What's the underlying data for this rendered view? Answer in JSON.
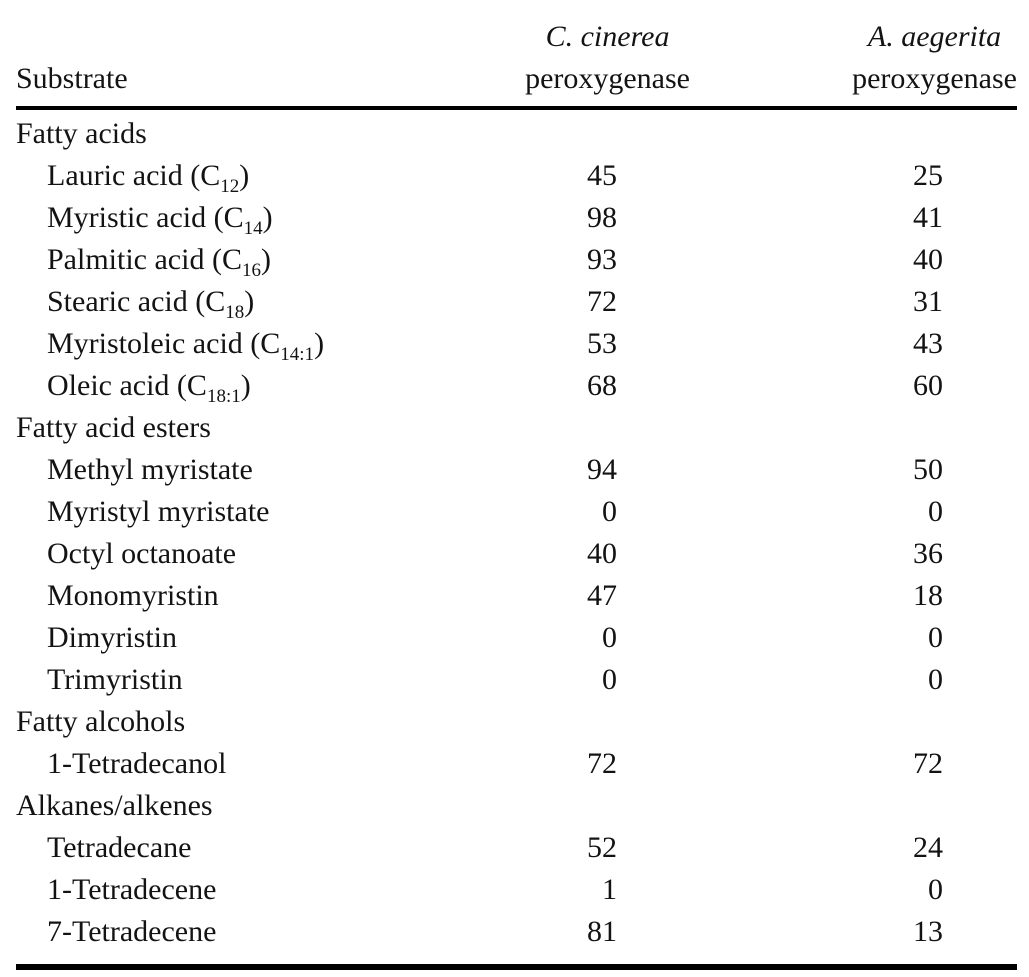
{
  "colors": {
    "background": "#ffffff",
    "text": "#131313",
    "rule": "#000000"
  },
  "table": {
    "header": {
      "substrate": "Substrate",
      "col2": {
        "species": "C. cinerea",
        "line2": "peroxygenase"
      },
      "col3": {
        "species": "A. aegerita",
        "line2": "peroxygenase"
      }
    },
    "rows": [
      {
        "type": "section",
        "label": [
          {
            "t": "Fatty acids"
          }
        ],
        "values": [
          "",
          ""
        ]
      },
      {
        "type": "item",
        "label": [
          {
            "t": "Lauric acid (C"
          },
          {
            "s": "12"
          },
          {
            "t": ")"
          }
        ],
        "values": [
          "45",
          "25"
        ]
      },
      {
        "type": "item",
        "label": [
          {
            "t": "Myristic acid (C"
          },
          {
            "s": "14"
          },
          {
            "t": ")"
          }
        ],
        "values": [
          "98",
          "41"
        ]
      },
      {
        "type": "item",
        "label": [
          {
            "t": "Palmitic acid (C"
          },
          {
            "s": "16"
          },
          {
            "t": ")"
          }
        ],
        "values": [
          "93",
          "40"
        ]
      },
      {
        "type": "item",
        "label": [
          {
            "t": "Stearic acid (C"
          },
          {
            "s": "18"
          },
          {
            "t": ")"
          }
        ],
        "values": [
          "72",
          "31"
        ]
      },
      {
        "type": "item",
        "label": [
          {
            "t": "Myristoleic acid (C"
          },
          {
            "s": "14:1"
          },
          {
            "t": ")"
          }
        ],
        "values": [
          "53",
          "43"
        ]
      },
      {
        "type": "item",
        "label": [
          {
            "t": "Oleic acid (C"
          },
          {
            "s": "18:1"
          },
          {
            "t": ")"
          }
        ],
        "values": [
          "68",
          "60"
        ]
      },
      {
        "type": "section",
        "label": [
          {
            "t": "Fatty acid esters"
          }
        ],
        "values": [
          "",
          ""
        ]
      },
      {
        "type": "item",
        "label": [
          {
            "t": "Methyl myristate"
          }
        ],
        "values": [
          "94",
          "50"
        ]
      },
      {
        "type": "item",
        "label": [
          {
            "t": "Myristyl myristate"
          }
        ],
        "values": [
          "0",
          "0"
        ]
      },
      {
        "type": "item",
        "label": [
          {
            "t": "Octyl octanoate"
          }
        ],
        "values": [
          "40",
          "36"
        ]
      },
      {
        "type": "item",
        "label": [
          {
            "t": "Monomyristin"
          }
        ],
        "values": [
          "47",
          "18"
        ]
      },
      {
        "type": "item",
        "label": [
          {
            "t": "Dimyristin"
          }
        ],
        "values": [
          "0",
          "0"
        ]
      },
      {
        "type": "item",
        "label": [
          {
            "t": "Trimyristin"
          }
        ],
        "values": [
          "0",
          "0"
        ]
      },
      {
        "type": "section",
        "label": [
          {
            "t": "Fatty alcohols"
          }
        ],
        "values": [
          "",
          ""
        ]
      },
      {
        "type": "item",
        "label": [
          {
            "t": "1-Tetradecanol"
          }
        ],
        "values": [
          "72",
          "72"
        ]
      },
      {
        "type": "section",
        "label": [
          {
            "t": "Alkanes/alkenes"
          }
        ],
        "values": [
          "",
          ""
        ]
      },
      {
        "type": "item",
        "label": [
          {
            "t": "Tetradecane"
          }
        ],
        "values": [
          "52",
          "24"
        ]
      },
      {
        "type": "item",
        "label": [
          {
            "t": "1-Tetradecene"
          }
        ],
        "values": [
          "1",
          "0"
        ]
      },
      {
        "type": "item",
        "label": [
          {
            "t": "7-Tetradecene"
          }
        ],
        "values": [
          "81",
          "13"
        ]
      }
    ]
  }
}
